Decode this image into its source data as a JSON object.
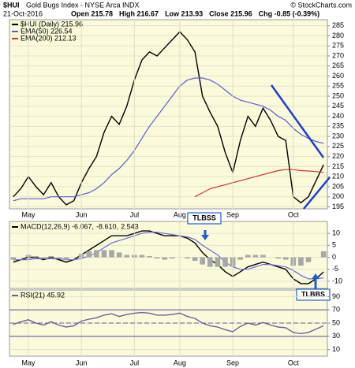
{
  "header": {
    "symbol": "$HUI",
    "name": "Gold Bugs Index - NYSE Arca INDX",
    "credit": "© StockCharts.com",
    "date": "21-Oct-2016",
    "stats": [
      "Open 215.78",
      "High 216.67",
      "Low 213.93",
      "Close 215.96",
      "Chg -0.85 (-0.39%)"
    ]
  },
  "chart_data": [
    {
      "type": "line",
      "categories": [
        null,
        null,
        "May",
        null,
        null,
        null,
        null,
        null,
        null,
        "Jun",
        null,
        null,
        null,
        null,
        null,
        null,
        "Jul",
        null,
        null,
        null,
        null,
        null,
        "Aug",
        null,
        null,
        null,
        null,
        null,
        null,
        "Sep",
        null,
        null,
        null,
        null,
        null,
        null,
        null,
        "Oct",
        null,
        null,
        null,
        null
      ],
      "series": [
        {
          "name": "$HUI (Daily) 215.96",
          "color": "#000000",
          "values": [
            200,
            204,
            210,
            205,
            201,
            207,
            200,
            196,
            198,
            207,
            214,
            220,
            232,
            240,
            236,
            245,
            258,
            268,
            272,
            270,
            274,
            278,
            282,
            278,
            272,
            250,
            242,
            235,
            222,
            212,
            228,
            240,
            235,
            244,
            238,
            230,
            228,
            200,
            197,
            200,
            208,
            215.96
          ]
        },
        {
          "name": "EMA(50) 226.54",
          "color": "#5a5ad2",
          "values": [
            198,
            199,
            199,
            199,
            199,
            200,
            200,
            200,
            200,
            201,
            202,
            204,
            207,
            211,
            214,
            218,
            223,
            229,
            235,
            240,
            245,
            250,
            255,
            258,
            259,
            259,
            258,
            256,
            253,
            250,
            248,
            247,
            246,
            245,
            243,
            240,
            238,
            234,
            231,
            229,
            227.5,
            226.54
          ]
        },
        {
          "name": "EMA(200) 212.13",
          "color": "#d23030",
          "values": [
            null,
            null,
            null,
            null,
            null,
            null,
            null,
            null,
            null,
            null,
            null,
            null,
            null,
            null,
            null,
            null,
            null,
            null,
            null,
            null,
            null,
            null,
            null,
            null,
            200,
            202,
            204,
            205,
            206,
            207,
            208,
            209,
            210,
            211,
            212,
            213,
            213.5,
            213.5,
            213,
            212.8,
            212.5,
            212.13
          ]
        }
      ],
      "ylim": [
        194,
        288
      ],
      "yticks": [
        195,
        200,
        205,
        210,
        215,
        220,
        225,
        230,
        235,
        240,
        245,
        250,
        255,
        260,
        265,
        270,
        275,
        280,
        285
      ],
      "grid": true
    },
    {
      "type": "line",
      "series": [
        {
          "name": "MACD(12,26,9) -6.067,",
          "color": "#000000",
          "values": [
            -2,
            -1,
            0,
            0,
            -1,
            0,
            -1,
            -2,
            -1,
            1,
            3,
            5,
            7,
            9,
            9,
            9,
            10,
            11,
            11,
            10,
            9,
            9,
            9,
            8,
            6,
            2,
            -1,
            -3,
            -6,
            -8,
            -6,
            -4,
            -3,
            -2,
            -3,
            -4,
            -5,
            -9,
            -11,
            -11,
            -9,
            -6.067
          ]
        },
        {
          "name": "-8.610,",
          "color": "#6a6ad6",
          "values": [
            -1,
            -1,
            -1,
            -0.5,
            -0.5,
            -0.5,
            -0.5,
            -1,
            -1,
            -0.5,
            0.5,
            2,
            4,
            6,
            7,
            8,
            9,
            10,
            10.5,
            10.5,
            10,
            9.5,
            9,
            8.5,
            7.5,
            5,
            3,
            1,
            -2,
            -4,
            -5,
            -5,
            -4,
            -3,
            -3,
            -3.5,
            -4,
            -5.5,
            -7.5,
            -9,
            -9,
            -8.61
          ]
        },
        {
          "name": "2.543",
          "color": "#a8a8a8",
          "style": "histogram",
          "values": [
            -1,
            0,
            1,
            0.5,
            -0.5,
            0.5,
            -0.5,
            -1,
            0,
            1.5,
            2.5,
            3,
            3,
            3,
            2,
            1,
            1,
            1,
            0.5,
            -0.5,
            -1,
            -0.5,
            0,
            -0.5,
            -1.5,
            -3,
            -4,
            -4,
            -4,
            -4,
            -1,
            1,
            1,
            1,
            0,
            -0.5,
            -1,
            -3.5,
            -3.5,
            -2,
            0,
            2.543
          ]
        }
      ],
      "annotations": [
        "TLBSS",
        "TLBBS"
      ],
      "ylim": [
        -13,
        15
      ],
      "yticks": [
        -10,
        -5,
        0,
        5,
        10
      ],
      "grid": true
    },
    {
      "type": "line",
      "categories": [
        null,
        null,
        "May",
        null,
        null,
        null,
        null,
        null,
        null,
        "Jun",
        null,
        null,
        null,
        null,
        null,
        null,
        "Jul",
        null,
        null,
        null,
        null,
        null,
        "Aug",
        null,
        null,
        null,
        null,
        null,
        null,
        "Sep",
        null,
        null,
        null,
        null,
        null,
        null,
        null,
        "Oct",
        null,
        null,
        null,
        null
      ],
      "series": [
        {
          "name": "RSI(21) 45.92",
          "color": "#6b5f9e",
          "values": [
            48,
            52,
            55,
            50,
            47,
            52,
            47,
            44,
            46,
            53,
            56,
            58,
            62,
            64,
            60,
            63,
            65,
            66,
            65,
            62,
            62,
            63,
            65,
            60,
            57,
            50,
            46,
            44,
            40,
            37,
            45,
            50,
            47,
            51,
            47,
            44,
            43,
            36,
            34,
            36,
            41,
            45.92
          ]
        }
      ],
      "levels": [
        30,
        70
      ],
      "dashed_levels": [
        50
      ],
      "level_color": "#6b5b9a",
      "ylim": [
        0,
        100
      ],
      "yticks": [
        10,
        30,
        50,
        70,
        90
      ],
      "grid": true
    }
  ]
}
